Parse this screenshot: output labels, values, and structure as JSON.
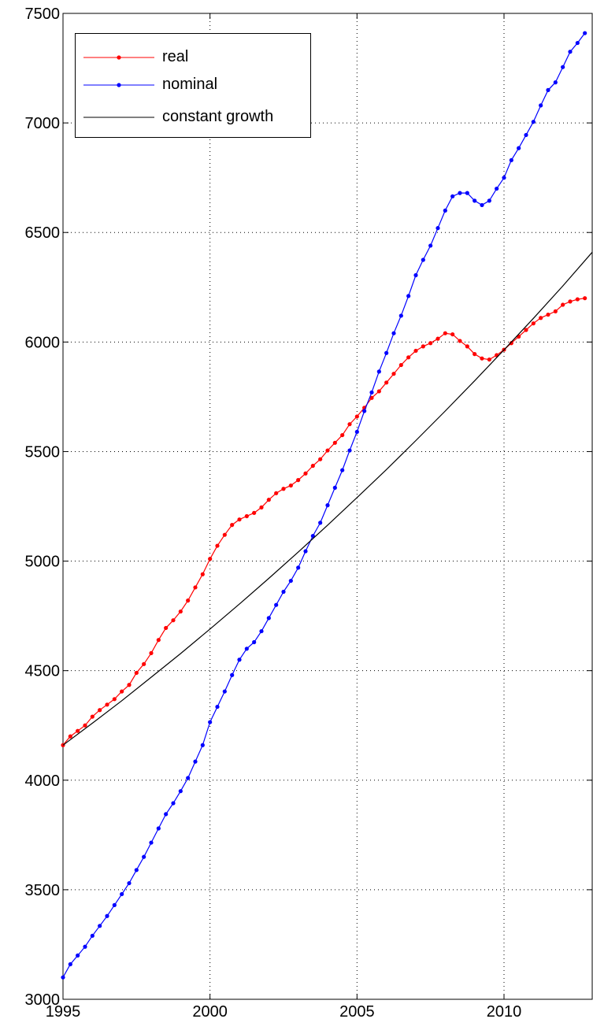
{
  "chart_data": {
    "type": "line",
    "x_range": [
      1995,
      2013
    ],
    "y_range": [
      3000,
      7500
    ],
    "x_ticks": [
      1995,
      2000,
      2005,
      2010
    ],
    "y_ticks": [
      3000,
      3500,
      4000,
      4500,
      5000,
      5500,
      6000,
      6500,
      7000,
      7500
    ],
    "grid": true,
    "legend_position": "top-left",
    "series": [
      {
        "name": "real",
        "color": "#ff0000",
        "marker": "dot",
        "x": [
          1995.0,
          1995.25,
          1995.5,
          1995.75,
          1996.0,
          1996.25,
          1996.5,
          1996.75,
          1997.0,
          1997.25,
          1997.5,
          1997.75,
          1998.0,
          1998.25,
          1998.5,
          1998.75,
          1999.0,
          1999.25,
          1999.5,
          1999.75,
          2000.0,
          2000.25,
          2000.5,
          2000.75,
          2001.0,
          2001.25,
          2001.5,
          2001.75,
          2002.0,
          2002.25,
          2002.5,
          2002.75,
          2003.0,
          2003.25,
          2003.5,
          2003.75,
          2004.0,
          2004.25,
          2004.5,
          2004.75,
          2005.0,
          2005.25,
          2005.5,
          2005.75,
          2006.0,
          2006.25,
          2006.5,
          2006.75,
          2007.0,
          2007.25,
          2007.5,
          2007.75,
          2008.0,
          2008.25,
          2008.5,
          2008.75,
          2009.0,
          2009.25,
          2009.5,
          2009.75,
          2010.0,
          2010.25,
          2010.5,
          2010.75,
          2011.0,
          2011.25,
          2011.5,
          2011.75,
          2012.0,
          2012.25,
          2012.5,
          2012.75
        ],
        "y": [
          4160,
          4200,
          4225,
          4250,
          4290,
          4320,
          4345,
          4370,
          4405,
          4435,
          4490,
          4530,
          4580,
          4640,
          4695,
          4730,
          4770,
          4820,
          4880,
          4940,
          5010,
          5070,
          5120,
          5165,
          5190,
          5205,
          5220,
          5245,
          5280,
          5310,
          5330,
          5345,
          5370,
          5400,
          5435,
          5465,
          5505,
          5540,
          5575,
          5625,
          5660,
          5700,
          5745,
          5775,
          5815,
          5855,
          5895,
          5930,
          5960,
          5980,
          5995,
          6015,
          6040,
          6035,
          6005,
          5980,
          5945,
          5925,
          5920,
          5940,
          5965,
          5995,
          6025,
          6055,
          6085,
          6110,
          6125,
          6140,
          6170,
          6185,
          6195,
          6200
        ]
      },
      {
        "name": "nominal",
        "color": "#0000ff",
        "marker": "dot",
        "x": [
          1995.0,
          1995.25,
          1995.5,
          1995.75,
          1996.0,
          1996.25,
          1996.5,
          1996.75,
          1997.0,
          1997.25,
          1997.5,
          1997.75,
          1998.0,
          1998.25,
          1998.5,
          1998.75,
          1999.0,
          1999.25,
          1999.5,
          1999.75,
          2000.0,
          2000.25,
          2000.5,
          2000.75,
          2001.0,
          2001.25,
          2001.5,
          2001.75,
          2002.0,
          2002.25,
          2002.5,
          2002.75,
          2003.0,
          2003.25,
          2003.5,
          2003.75,
          2004.0,
          2004.25,
          2004.5,
          2004.75,
          2005.0,
          2005.25,
          2005.5,
          2005.75,
          2006.0,
          2006.25,
          2006.5,
          2006.75,
          2007.0,
          2007.25,
          2007.5,
          2007.75,
          2008.0,
          2008.25,
          2008.5,
          2008.75,
          2009.0,
          2009.25,
          2009.5,
          2009.75,
          2010.0,
          2010.25,
          2010.5,
          2010.75,
          2011.0,
          2011.25,
          2011.5,
          2011.75,
          2012.0,
          2012.25,
          2012.5,
          2012.75
        ],
        "y": [
          3100,
          3160,
          3200,
          3240,
          3290,
          3335,
          3380,
          3430,
          3480,
          3530,
          3590,
          3650,
          3715,
          3780,
          3845,
          3895,
          3950,
          4010,
          4085,
          4160,
          4265,
          4335,
          4405,
          4480,
          4550,
          4600,
          4630,
          4680,
          4740,
          4800,
          4860,
          4910,
          4970,
          5045,
          5115,
          5175,
          5255,
          5335,
          5415,
          5505,
          5590,
          5685,
          5770,
          5865,
          5950,
          6040,
          6120,
          6210,
          6305,
          6375,
          6440,
          6520,
          6600,
          6665,
          6680,
          6680,
          6645,
          6625,
          6645,
          6700,
          6750,
          6830,
          6885,
          6945,
          7005,
          7080,
          7150,
          7185,
          7255,
          7325,
          7365,
          7410
        ]
      },
      {
        "name": "constant growth",
        "color": "#000000",
        "marker": "none",
        "x": [
          1995.0,
          1996.0,
          1997.0,
          1998.0,
          1999.0,
          2000.0,
          2001.0,
          2002.0,
          2003.0,
          2004.0,
          2005.0,
          2006.0,
          2007.0,
          2008.0,
          2009.0,
          2010.0,
          2011.0,
          2012.0,
          2013.0
        ],
        "y": [
          4160,
          4260,
          4363,
          4470,
          4578,
          4690,
          4804,
          4921,
          5041,
          5164,
          5290,
          5418,
          5550,
          5685,
          5823,
          5964,
          6108,
          6256,
          6410
        ]
      }
    ]
  }
}
